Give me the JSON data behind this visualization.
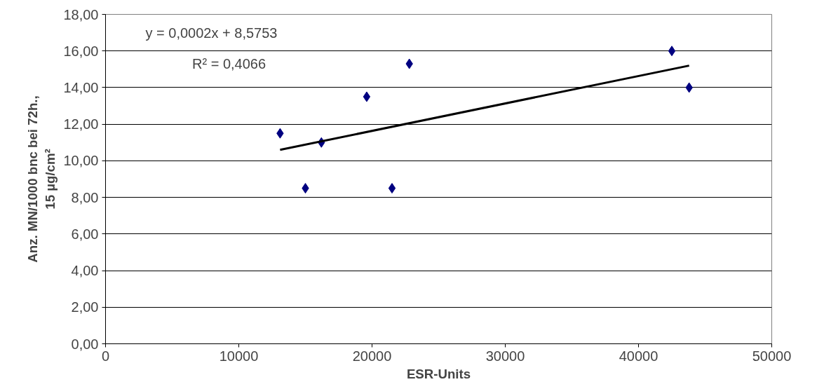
{
  "chart_data": {
    "type": "scatter",
    "xlabel": "ESR-Units",
    "ylabel": "Anz. MN/1000 bnc bei 72h.,\n15 µg/cm²",
    "annotations": [
      "y = 0,0002x + 8,5753",
      "R² = 0,4066"
    ],
    "series": [
      {
        "color": "#000080",
        "marker": "diamond",
        "x": [
          13100,
          15000,
          16200,
          19600,
          21500,
          22800,
          42500,
          43800
        ],
        "values": [
          11.5,
          8.5,
          11.0,
          13.5,
          8.5,
          15.3,
          16.0,
          14.0
        ]
      },
      {
        "type": "line",
        "color": "#000000",
        "marker": "none",
        "line_style": "solid",
        "x": [
          13100,
          43800
        ],
        "values": [
          10.6,
          15.2
        ]
      }
    ],
    "xlim": [
      0,
      50000
    ],
    "xticks": [
      0,
      10000,
      20000,
      30000,
      40000,
      50000
    ],
    "ylim": [
      0,
      18
    ],
    "yticks": [
      {
        "value": 0,
        "label": "0,00"
      },
      {
        "value": 2,
        "label": "2,00"
      },
      {
        "value": 4,
        "label": "4,00"
      },
      {
        "value": 6,
        "label": "6,00"
      },
      {
        "value": 8,
        "label": "8,00"
      },
      {
        "value": 10,
        "label": "10,00"
      },
      {
        "value": 12,
        "label": "12,00"
      },
      {
        "value": 14,
        "label": "14,00"
      },
      {
        "value": 16,
        "label": "16,00"
      },
      {
        "value": 18,
        "label": "18,00"
      }
    ],
    "grid": "y"
  }
}
